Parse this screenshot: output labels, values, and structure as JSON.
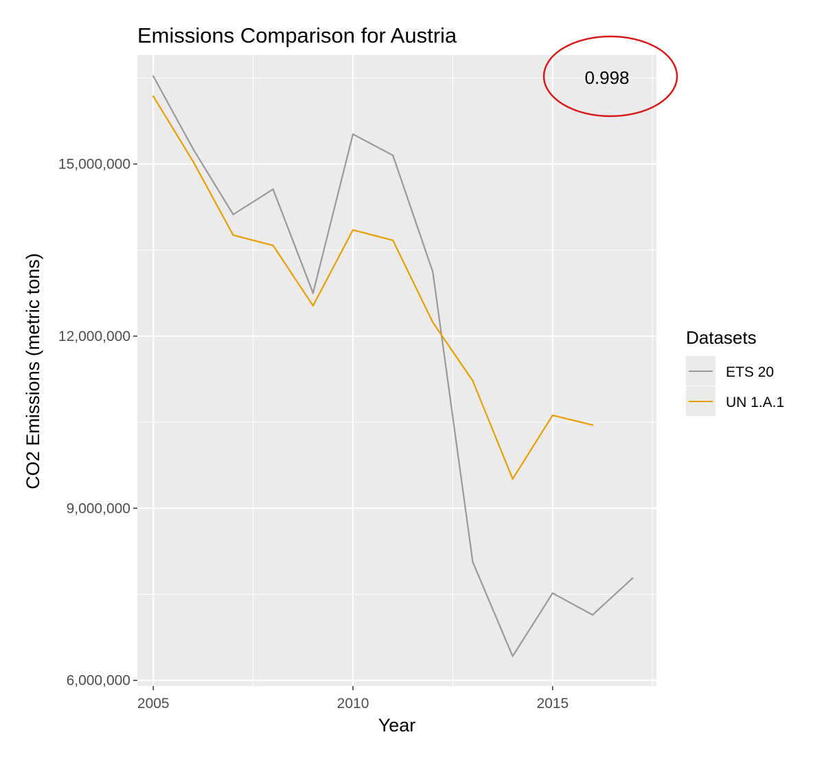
{
  "chart_data": {
    "type": "line",
    "title": "Emissions Comparison for Austria",
    "xlabel": "Year",
    "ylabel": "CO2 Emissions (metric tons)",
    "xlim": [
      2004.6,
      2017.6
    ],
    "ylim": [
      5900000,
      16900000
    ],
    "x_ticks": [
      2005,
      2010,
      2015
    ],
    "x_tick_labels": [
      "2005",
      "2010",
      "2015"
    ],
    "y_ticks": [
      6000000,
      9000000,
      12000000,
      15000000
    ],
    "y_tick_labels": [
      "6,000,000",
      "9,000,000",
      "12,000,000",
      "15,000,000"
    ],
    "grid": true,
    "legend": {
      "title": "Datasets",
      "placement": "right"
    },
    "series": [
      {
        "name": "ETS 20",
        "color": "#999999",
        "x": [
          2005,
          2006,
          2007,
          2008,
          2009,
          2010,
          2011,
          2012,
          2013,
          2014,
          2015,
          2016,
          2017
        ],
        "values": [
          16530000,
          15260000,
          14120000,
          14560000,
          12750000,
          15520000,
          15150000,
          13120000,
          8060000,
          6420000,
          7520000,
          7140000,
          7780000
        ]
      },
      {
        "name": "UN 1.A.1",
        "color": "#E69F00",
        "x": [
          2005,
          2006,
          2007,
          2008,
          2009,
          2010,
          2011,
          2012,
          2013,
          2014,
          2015,
          2016
        ],
        "values": [
          16180000,
          15040000,
          13760000,
          13580000,
          12530000,
          13850000,
          13670000,
          12240000,
          11220000,
          9510000,
          10620000,
          10450000
        ]
      }
    ],
    "annotation": {
      "text": "0.998",
      "circle_color": "#D7191C"
    }
  }
}
